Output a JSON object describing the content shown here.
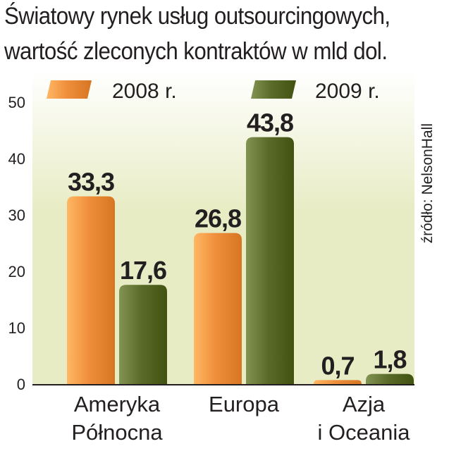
{
  "chart_data": {
    "type": "bar",
    "title_lines": [
      "Światowy rynek usług outsourcingowych,",
      "wartość zleconych kontraktów w mld dol."
    ],
    "categories": [
      [
        "Ameryka",
        "Północna"
      ],
      [
        "Europa"
      ],
      [
        "Azja",
        "i Oceania"
      ]
    ],
    "series": [
      {
        "name": "2008 r.",
        "color": "#ef8f3c",
        "values": [
          33.3,
          26.8,
          0.7
        ],
        "labels": [
          "33,3",
          "26,8",
          "0,7"
        ]
      },
      {
        "name": "2009 r.",
        "color": "#5a6b2a",
        "values": [
          17.6,
          43.8,
          1.8
        ],
        "labels": [
          "17,6",
          "43,8",
          "1,8"
        ]
      }
    ],
    "yticks": [
      0,
      10,
      20,
      30,
      40,
      50
    ],
    "ylim": [
      0,
      50
    ],
    "grid": false,
    "legend_position": "top",
    "source": "źródło: NelsonHall",
    "background_gradient": [
      "#e8ecc4",
      "#ffffff"
    ]
  }
}
